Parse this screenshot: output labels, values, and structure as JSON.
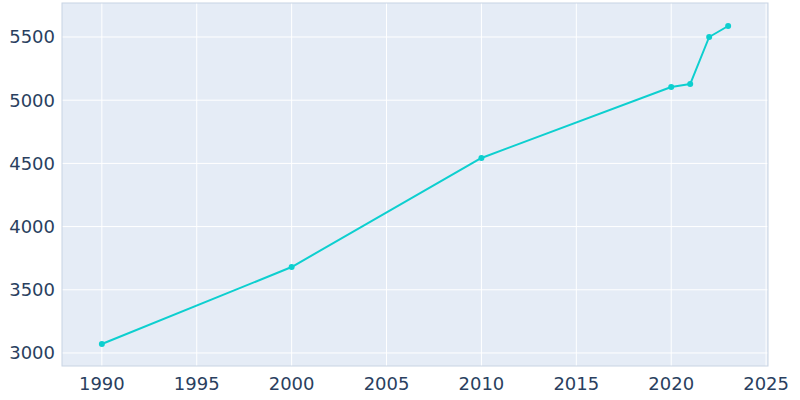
{
  "chart_data": {
    "type": "line",
    "x": [
      1990,
      2000,
      2010,
      2020,
      2021,
      2022,
      2023
    ],
    "values": [
      3071,
      3680,
      4543,
      5104,
      5128,
      5500,
      5587
    ],
    "color": "#0dcfcf",
    "marker": "circle",
    "xlim": [
      1987.9,
      2025.1
    ],
    "xticks": [
      1990,
      1995,
      2000,
      2005,
      2010,
      2015,
      2020,
      2025
    ],
    "ylim": [
      2897,
      5769
    ],
    "yticks": [
      3000,
      3500,
      4000,
      4500,
      5000,
      5500
    ],
    "grid": true
  }
}
